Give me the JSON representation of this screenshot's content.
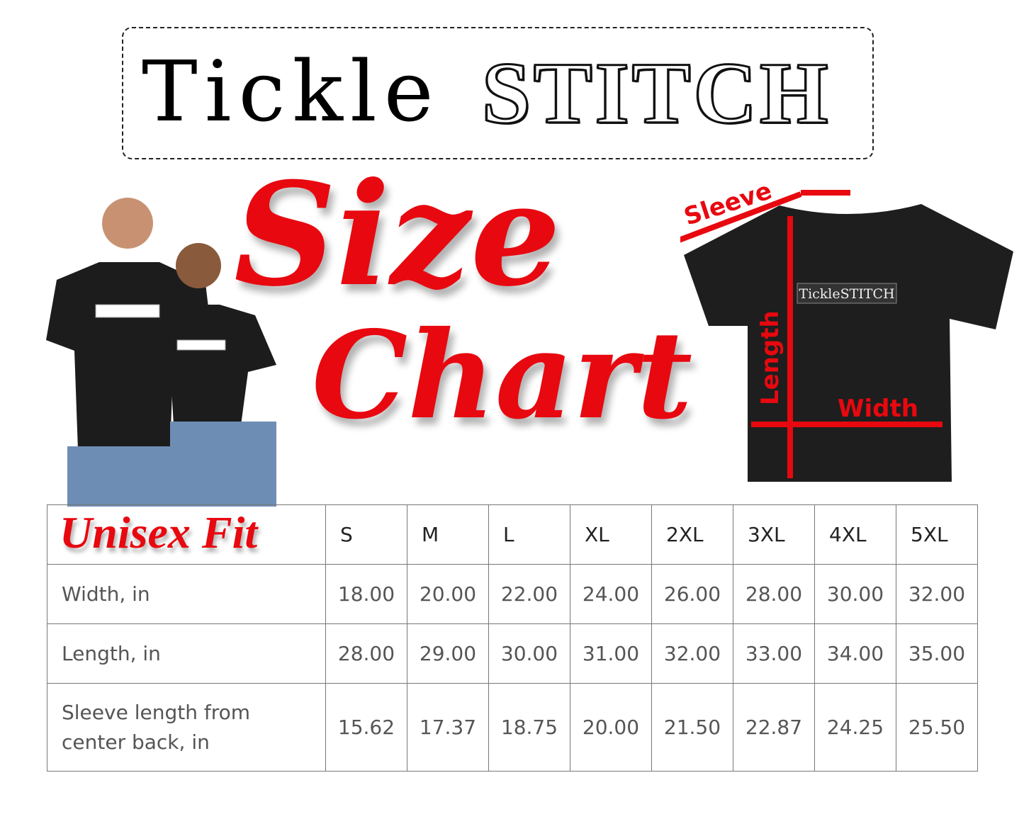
{
  "brand": {
    "part1": "Tickle",
    "part2": "STITCH"
  },
  "title": {
    "line1": "Size",
    "line2": "Chart"
  },
  "fit_label": "Unisex Fit",
  "diagram": {
    "sleeve": "Sleeve",
    "length": "Length",
    "width": "Width",
    "shirt_print": "TickleSTITCH"
  },
  "colors": {
    "accent": "#e8080f",
    "shirt": "#1e1e1e"
  },
  "table": {
    "sizes": [
      "S",
      "M",
      "L",
      "XL",
      "2XL",
      "3XL",
      "4XL",
      "5XL"
    ],
    "rows": [
      {
        "label": "Width, in",
        "values": [
          "18.00",
          "20.00",
          "22.00",
          "24.00",
          "26.00",
          "28.00",
          "30.00",
          "32.00"
        ]
      },
      {
        "label": "Length, in",
        "values": [
          "28.00",
          "29.00",
          "30.00",
          "31.00",
          "32.00",
          "33.00",
          "34.00",
          "35.00"
        ]
      },
      {
        "label": "Sleeve length from center back, in",
        "values": [
          "15.62",
          "17.37",
          "18.75",
          "20.00",
          "21.50",
          "22.87",
          "24.25",
          "25.50"
        ]
      }
    ]
  }
}
